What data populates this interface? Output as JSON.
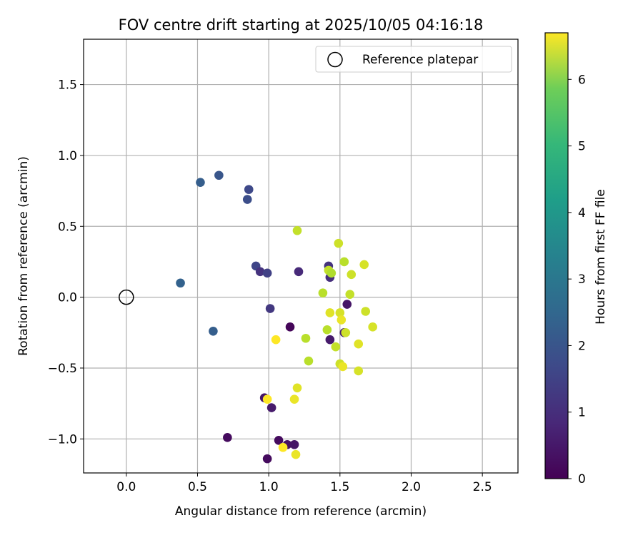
{
  "chart_data": {
    "type": "scatter",
    "title": "FOV centre drift starting at 2025/10/05 04:16:18",
    "xlabel": "Angular distance from reference (arcmin)",
    "ylabel": "Rotation from reference (arcmin)",
    "xlim": [
      -0.3,
      2.75
    ],
    "ylim": [
      -1.24,
      1.82
    ],
    "xticks": [
      0.0,
      0.5,
      1.0,
      1.5,
      2.0,
      2.5
    ],
    "xtick_labels": [
      "0.0",
      "0.5",
      "1.0",
      "1.5",
      "2.0",
      "2.5"
    ],
    "yticks": [
      -1.0,
      -0.5,
      0.0,
      0.5,
      1.0,
      1.5
    ],
    "ytick_labels": [
      "−1.0",
      "−0.5",
      "0.0",
      "0.5",
      "1.0",
      "1.5"
    ],
    "grid": true,
    "legend": {
      "position": "top-right",
      "entries": [
        "Reference platepar"
      ]
    },
    "reference_point": {
      "x": 0.0,
      "y": 0.0,
      "label": "Reference platepar"
    },
    "colorbar": {
      "label": "Hours from first FF file",
      "colormap": "viridis",
      "range": [
        0,
        6.7
      ],
      "ticks": [
        0,
        1,
        2,
        3,
        4,
        5,
        6
      ],
      "tick_labels": [
        "0",
        "1",
        "2",
        "3",
        "4",
        "5",
        "6"
      ]
    },
    "points": [
      {
        "x": 0.38,
        "y": 0.1,
        "hours": 2.1
      },
      {
        "x": 0.52,
        "y": 0.81,
        "hours": 2.0
      },
      {
        "x": 0.65,
        "y": 0.86,
        "hours": 1.8
      },
      {
        "x": 0.86,
        "y": 0.76,
        "hours": 1.5
      },
      {
        "x": 0.85,
        "y": 0.69,
        "hours": 1.6
      },
      {
        "x": 0.61,
        "y": -0.24,
        "hours": 2.0
      },
      {
        "x": 0.91,
        "y": 0.22,
        "hours": 1.4
      },
      {
        "x": 0.94,
        "y": 0.18,
        "hours": 1.0
      },
      {
        "x": 0.99,
        "y": 0.17,
        "hours": 1.3
      },
      {
        "x": 1.01,
        "y": -0.08,
        "hours": 1.1
      },
      {
        "x": 1.21,
        "y": 0.18,
        "hours": 0.8
      },
      {
        "x": 1.42,
        "y": 0.22,
        "hours": 1.0
      },
      {
        "x": 1.43,
        "y": 0.14,
        "hours": 0.9
      },
      {
        "x": 1.15,
        "y": -0.21,
        "hours": 0.1
      },
      {
        "x": 1.55,
        "y": -0.05,
        "hours": 0.4
      },
      {
        "x": 1.43,
        "y": -0.3,
        "hours": 0.5
      },
      {
        "x": 1.53,
        "y": -0.25,
        "hours": 0.6
      },
      {
        "x": 0.97,
        "y": -0.71,
        "hours": 0.4
      },
      {
        "x": 1.02,
        "y": -0.78,
        "hours": 0.5
      },
      {
        "x": 0.71,
        "y": -0.99,
        "hours": 0.2
      },
      {
        "x": 1.07,
        "y": -1.01,
        "hours": 0.2
      },
      {
        "x": 1.13,
        "y": -1.04,
        "hours": 0.3
      },
      {
        "x": 1.18,
        "y": -1.04,
        "hours": 0.4
      },
      {
        "x": 0.99,
        "y": -1.14,
        "hours": 0.2
      },
      {
        "x": 1.2,
        "y": 0.47,
        "hours": 6.1
      },
      {
        "x": 1.49,
        "y": 0.38,
        "hours": 6.2
      },
      {
        "x": 1.53,
        "y": 0.25,
        "hours": 6.0
      },
      {
        "x": 1.67,
        "y": 0.23,
        "hours": 6.3
      },
      {
        "x": 1.42,
        "y": 0.19,
        "hours": 6.1
      },
      {
        "x": 1.44,
        "y": 0.17,
        "hours": 5.9
      },
      {
        "x": 1.58,
        "y": 0.16,
        "hours": 6.2
      },
      {
        "x": 1.38,
        "y": 0.03,
        "hours": 6.0
      },
      {
        "x": 1.57,
        "y": 0.02,
        "hours": 6.1
      },
      {
        "x": 1.43,
        "y": -0.11,
        "hours": 6.4
      },
      {
        "x": 1.5,
        "y": -0.11,
        "hours": 6.3
      },
      {
        "x": 1.51,
        "y": -0.16,
        "hours": 6.5
      },
      {
        "x": 1.68,
        "y": -0.1,
        "hours": 6.2
      },
      {
        "x": 1.41,
        "y": -0.23,
        "hours": 6.0
      },
      {
        "x": 1.54,
        "y": -0.25,
        "hours": 6.2
      },
      {
        "x": 1.73,
        "y": -0.21,
        "hours": 6.3
      },
      {
        "x": 1.26,
        "y": -0.29,
        "hours": 6.0
      },
      {
        "x": 1.05,
        "y": -0.3,
        "hours": 6.7
      },
      {
        "x": 1.47,
        "y": -0.35,
        "hours": 6.1
      },
      {
        "x": 1.63,
        "y": -0.33,
        "hours": 6.4
      },
      {
        "x": 1.28,
        "y": -0.45,
        "hours": 6.0
      },
      {
        "x": 1.5,
        "y": -0.47,
        "hours": 6.2
      },
      {
        "x": 1.52,
        "y": -0.49,
        "hours": 6.5
      },
      {
        "x": 1.63,
        "y": -0.52,
        "hours": 6.3
      },
      {
        "x": 1.2,
        "y": -0.64,
        "hours": 6.4
      },
      {
        "x": 0.99,
        "y": -0.72,
        "hours": 6.7
      },
      {
        "x": 1.18,
        "y": -0.72,
        "hours": 6.5
      },
      {
        "x": 1.1,
        "y": -1.06,
        "hours": 6.7
      },
      {
        "x": 1.19,
        "y": -1.11,
        "hours": 6.5
      }
    ]
  }
}
